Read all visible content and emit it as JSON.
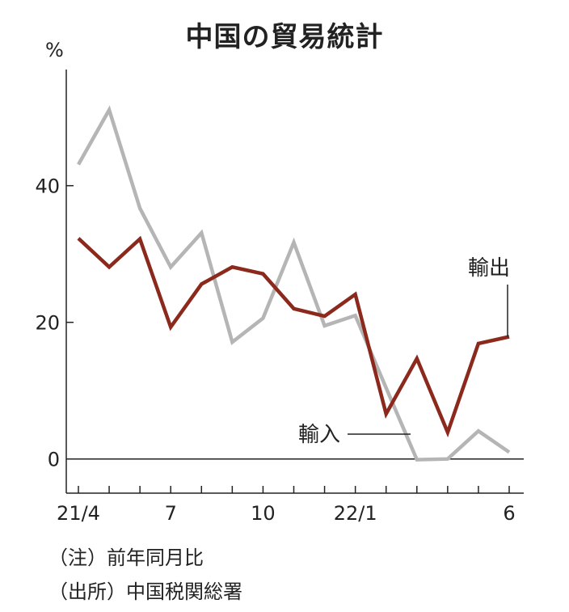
{
  "chart_data": {
    "type": "line",
    "title": "中国の貿易統計",
    "ylabel": "%",
    "ylim": [
      -5,
      57
    ],
    "yticks": [
      0,
      20,
      40
    ],
    "x": [
      "21/4",
      "21/5",
      "21/6",
      "21/7",
      "21/8",
      "21/9",
      "21/10",
      "21/11",
      "21/12",
      "22/1",
      "22/2",
      "22/3",
      "22/4",
      "22/5",
      "22/6"
    ],
    "xtick_labels": [
      "21/4",
      "",
      "",
      "7",
      "",
      "",
      "10",
      "",
      "",
      "22/1",
      "",
      "",
      "",
      "",
      "6"
    ],
    "series": [
      {
        "name": "輸出",
        "color": "#8b2a1c",
        "values": [
          32.3,
          28.1,
          32.2,
          19.3,
          25.6,
          28.1,
          27.1,
          22.0,
          20.9,
          24.1,
          6.6,
          14.7,
          3.9,
          16.9,
          17.9
        ]
      },
      {
        "name": "輸入",
        "color": "#b5b5b5",
        "values": [
          43.1,
          51.1,
          36.7,
          28.1,
          33.1,
          17.1,
          20.6,
          31.7,
          19.5,
          21.0,
          10.4,
          -0.1,
          0.0,
          4.1,
          1.0
        ]
      }
    ],
    "grid": false,
    "legend": "direct-labels"
  },
  "notes": [
    "（注）前年同月比",
    "（出所）中国税関総署"
  ]
}
